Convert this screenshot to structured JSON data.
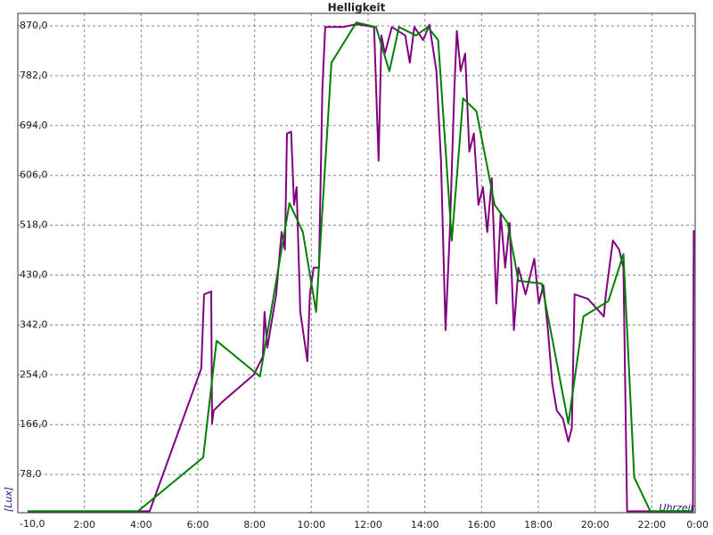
{
  "chart_data": {
    "type": "line",
    "title": "Helligkeit",
    "y_label": "[Lux]",
    "x_label": "Uhrzeit",
    "xlim": [
      0,
      24
    ],
    "ylim": [
      -10,
      870
    ],
    "xticks": [
      {
        "value": 2,
        "label": "2:00"
      },
      {
        "value": 4,
        "label": "4:00"
      },
      {
        "value": 6,
        "label": "6:00"
      },
      {
        "value": 8,
        "label": "8:00"
      },
      {
        "value": 10,
        "label": "10:00"
      },
      {
        "value": 12,
        "label": "12:00"
      },
      {
        "value": 14,
        "label": "14:00"
      },
      {
        "value": 16,
        "label": "16:00"
      },
      {
        "value": 18,
        "label": "18:00"
      },
      {
        "value": 20,
        "label": "20:00"
      },
      {
        "value": 22,
        "label": "22:00"
      },
      {
        "value": 24,
        "label": "0:00"
      }
    ],
    "yticks": [
      {
        "value": -10,
        "label": "-10,0"
      },
      {
        "value": 78,
        "label": "78,0"
      },
      {
        "value": 166,
        "label": "166,0"
      },
      {
        "value": 254,
        "label": "254,0"
      },
      {
        "value": 342,
        "label": "342,0"
      },
      {
        "value": 430,
        "label": "430,0"
      },
      {
        "value": 518,
        "label": "518,0"
      },
      {
        "value": 606,
        "label": "606,0"
      },
      {
        "value": 694,
        "label": "694,0"
      },
      {
        "value": 782,
        "label": "782,0"
      },
      {
        "value": 870,
        "label": "870,0"
      }
    ],
    "grid": true,
    "series": [
      {
        "color": "#800080",
        "x": [
          0,
          4.3,
          6.12,
          6.22,
          6.47,
          6.5,
          6.56,
          6.88,
          7.97,
          8.29,
          8.35,
          8.45,
          8.76,
          8.95,
          9.07,
          9.14,
          9.29,
          9.39,
          9.48,
          9.61,
          9.86,
          9.95,
          10.08,
          10.27,
          10.39,
          10.49,
          11.11,
          11.59,
          12.21,
          12.37,
          12.47,
          12.59,
          12.84,
          13.31,
          13.47,
          13.63,
          13.94,
          14.16,
          14.41,
          14.57,
          14.73,
          14.88,
          15.04,
          15.13,
          15.26,
          15.42,
          15.57,
          15.73,
          15.89,
          16.05,
          16.2,
          16.36,
          16.52,
          16.67,
          16.83,
          16.99,
          17.14,
          17.3,
          17.55,
          17.86,
          18.02,
          18.18,
          18.34,
          18.49,
          18.65,
          18.87,
          19.06,
          19.18,
          19.28,
          19.75,
          20.31,
          20.38,
          20.63,
          20.85,
          21.0,
          21.13,
          23.45,
          23.48
        ],
        "values": [
          13,
          13,
          265,
          396,
          401,
          168,
          191,
          207,
          254,
          286,
          365,
          302,
          396,
          506,
          475,
          680,
          683,
          554,
          585,
          365,
          278,
          396,
          443,
          443,
          758,
          868,
          868,
          873,
          868,
          632,
          853,
          821,
          868,
          853,
          805,
          868,
          845,
          872,
          790,
          632,
          333,
          506,
          758,
          861,
          790,
          821,
          648,
          680,
          554,
          585,
          506,
          601,
          380,
          538,
          443,
          522,
          333,
          443,
          396,
          459,
          380,
          412,
          333,
          239,
          191,
          176,
          136,
          160,
          396,
          388,
          357,
          396,
          491,
          475,
          443,
          13,
          13,
          509
        ]
      },
      {
        "color": "#008000",
        "x": [
          0,
          3.89,
          6.19,
          6.66,
          8.19,
          9.23,
          9.7,
          10.17,
          10.71,
          11.59,
          12.28,
          12.75,
          13.09,
          13.69,
          14.1,
          14.47,
          14.95,
          15.35,
          15.82,
          16.46,
          16.92,
          17.3,
          18.12,
          19.06,
          19.59,
          20.47,
          21.0,
          21.38,
          21.95,
          23.45
        ],
        "values": [
          13,
          13,
          108,
          314,
          251,
          557,
          506,
          365,
          805,
          876,
          868,
          790,
          868,
          853,
          868,
          845,
          491,
          742,
          719,
          554,
          522,
          420,
          415,
          168,
          357,
          384,
          467,
          73,
          13,
          13
        ]
      }
    ]
  }
}
